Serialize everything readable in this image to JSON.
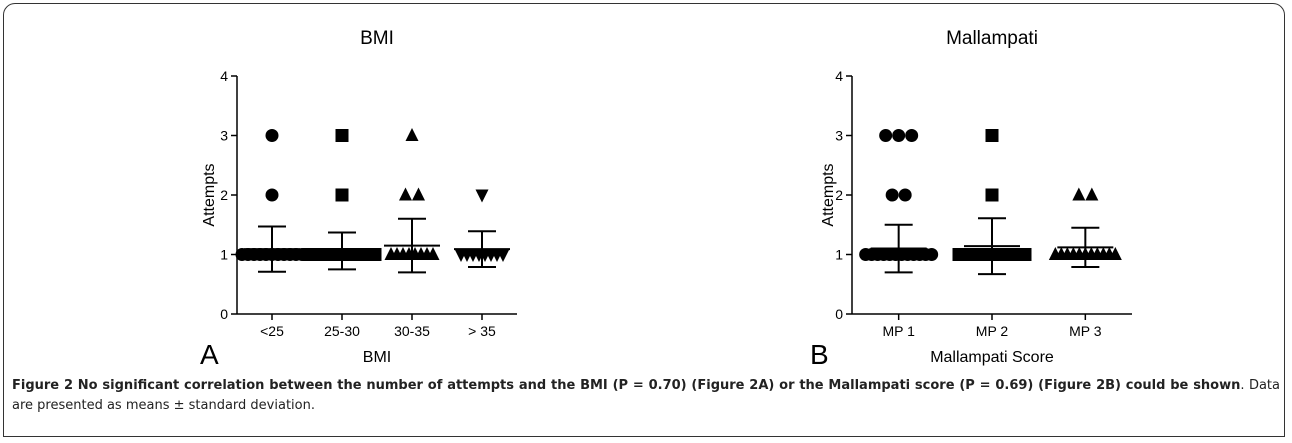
{
  "chart_data": [
    {
      "type": "scatter",
      "panel": "A",
      "title": "BMI",
      "xlabel": "BMI",
      "ylabel": "Attempts",
      "ylim": [
        0,
        4
      ],
      "yticks": [
        0,
        1,
        2,
        3,
        4
      ],
      "categories": [
        "<25",
        "25-30",
        "30-35",
        "> 35"
      ],
      "markers": [
        "circle",
        "square",
        "triangle",
        "triangle-down"
      ],
      "points": [
        {
          "values": [
            1,
            1,
            1,
            1,
            1,
            1,
            1,
            1,
            1,
            1,
            1,
            2,
            3
          ]
        },
        {
          "values": [
            1,
            1,
            1,
            1,
            1,
            1,
            1,
            1,
            1,
            1,
            1,
            1,
            2,
            3
          ]
        },
        {
          "values": [
            1,
            1,
            1,
            1,
            1,
            1,
            1,
            1,
            2,
            2,
            3
          ]
        },
        {
          "values": [
            1,
            1,
            1,
            1,
            1,
            1,
            1,
            1,
            2
          ]
        }
      ],
      "mean": [
        1.09,
        1.06,
        1.15,
        1.09
      ],
      "sd": [
        0.38,
        0.31,
        0.45,
        0.3
      ]
    },
    {
      "type": "scatter",
      "panel": "B",
      "title": "Mallampati",
      "xlabel": "Mallampati Score",
      "ylabel": "Attempts",
      "ylim": [
        0,
        4
      ],
      "yticks": [
        0,
        1,
        2,
        3,
        4
      ],
      "categories": [
        "MP 1",
        "MP 2",
        "MP 3"
      ],
      "markers": [
        "circle",
        "square",
        "triangle"
      ],
      "points": [
        {
          "values": [
            1,
            1,
            1,
            1,
            1,
            1,
            1,
            1,
            1,
            1,
            1,
            1,
            2,
            2,
            3,
            3,
            3
          ]
        },
        {
          "values": [
            1,
            1,
            1,
            1,
            1,
            1,
            1,
            1,
            1,
            1,
            1,
            1,
            2,
            3
          ]
        },
        {
          "values": [
            1,
            1,
            1,
            1,
            1,
            1,
            1,
            1,
            1,
            1,
            1,
            2,
            2
          ]
        }
      ],
      "mean": [
        1.1,
        1.14,
        1.12
      ],
      "sd": [
        0.4,
        0.47,
        0.33
      ]
    }
  ],
  "caption": {
    "bold": "Figure 2 No significant correlation between the number of attempts and the BMI (P = 0.70) (Figure 2A) or the Mallampati score (P = 0.69) (Figure 2B) could be shown",
    "rest": ". Data are presented as means ± standard deviation."
  }
}
